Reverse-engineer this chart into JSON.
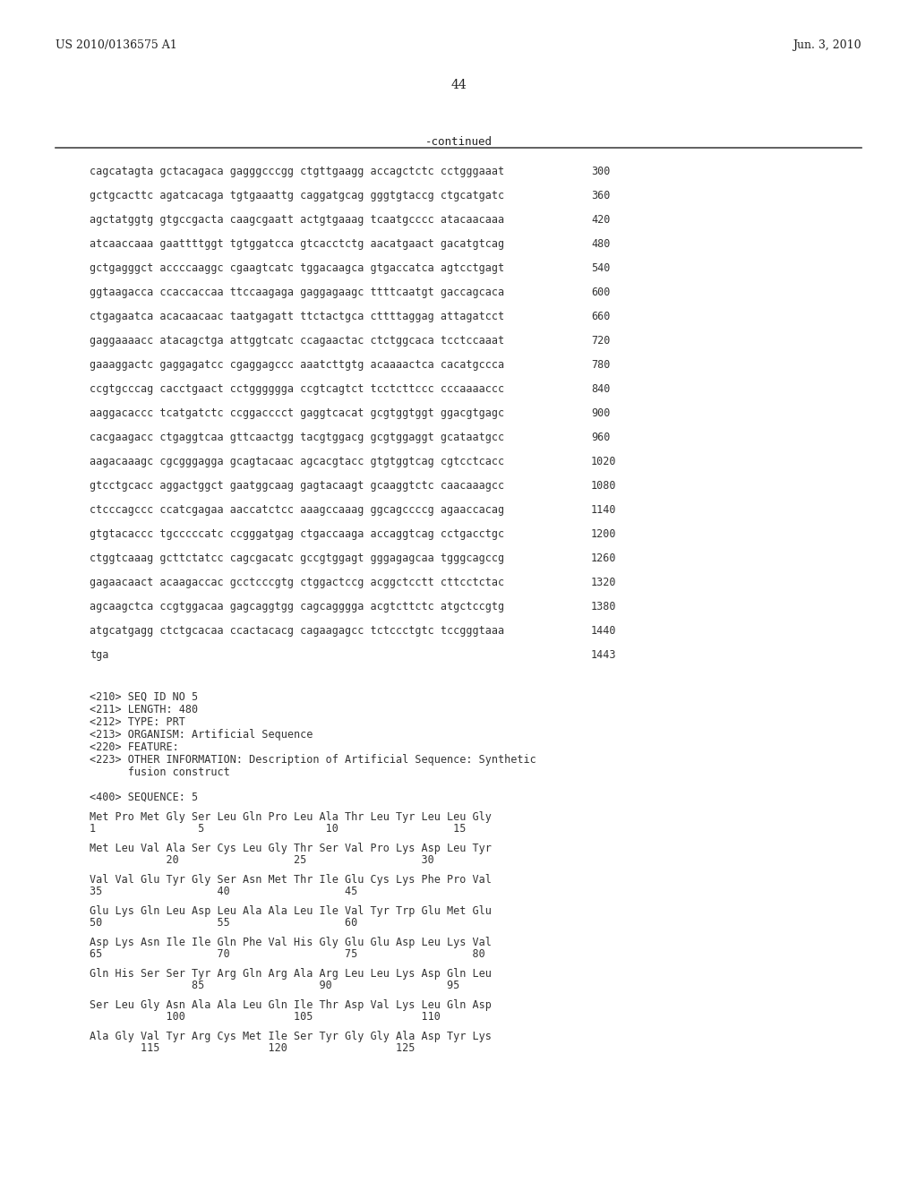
{
  "header_left": "US 2010/0136575 A1",
  "header_right": "Jun. 3, 2010",
  "page_number": "44",
  "continued_label": "-continued",
  "background_color": "#ffffff",
  "sequence_lines": [
    {
      "seq": "cagcatagta gctacagaca gagggcccgg ctgttgaagg accagctctc cctgggaaat",
      "num": "300"
    },
    {
      "seq": "gctgcacttc agatcacaga tgtgaaattg caggatgcag gggtgtaccg ctgcatgatc",
      "num": "360"
    },
    {
      "seq": "agctatggtg gtgccgacta caagcgaatt actgtgaaag tcaatgcccc atacaacaaa",
      "num": "420"
    },
    {
      "seq": "atcaaccaaa gaattttggt tgtggatcca gtcacctctg aacatgaact gacatgtcag",
      "num": "480"
    },
    {
      "seq": "gctgagggct accccaaggc cgaagtcatc tggacaagca gtgaccatca agtcctgagt",
      "num": "540"
    },
    {
      "seq": "ggtaagacca ccaccaccaa ttccaagaga gaggagaagc ttttcaatgt gaccagcaca",
      "num": "600"
    },
    {
      "seq": "ctgagaatca acacaacaac taatgagatt ttctactgca cttttaggag attagatcct",
      "num": "660"
    },
    {
      "seq": "gaggaaaacc atacagctga attggtcatc ccagaactac ctctggcaca tcctccaaat",
      "num": "720"
    },
    {
      "seq": "gaaaggactc gaggagatcc cgaggagccc aaatcttgtg acaaaactca cacatgccca",
      "num": "780"
    },
    {
      "seq": "ccgtgcccag cacctgaact cctgggggga ccgtcagtct tcctcttccc cccaaaaccc",
      "num": "840"
    },
    {
      "seq": "aaggacaccс tcatgatctc ccggacccct gaggtcacat gcgtggtggt ggacgtgagc",
      "num": "900"
    },
    {
      "seq": "cacgaagacc ctgaggtcaa gttcaactgg tacgtggacg gcgtggaggt gcataatgcc",
      "num": "960"
    },
    {
      "seq": "aagacaaagc cgcgggagga gcagtacaac agcacgtacc gtgtggtcag cgtcctcacc",
      "num": "1020"
    },
    {
      "seq": "gtcctgcacc aggactggct gaatggcaag gagtacaagt gcaaggtctc caacaaagcc",
      "num": "1080"
    },
    {
      "seq": "ctcccagccc ccatcgagaa aaccatctcc aaagccaaag ggcagccccg agaaccacag",
      "num": "1140"
    },
    {
      "seq": "gtgtacaccc tgcccccatc ccgggatgag ctgaccaaga accaggtcag cctgacctgc",
      "num": "1200"
    },
    {
      "seq": "ctggtcaaag gcttctatcc cagcgacatc gccgtggagt gggagagcaa tgggcagccg",
      "num": "1260"
    },
    {
      "seq": "gagaacaact acaagaccac gcctcccgtg ctggactccg acggctcctt cttcctctac",
      "num": "1320"
    },
    {
      "seq": "agcaagctca ccgtggacaa gagcaggtgg cagcagggga acgtcttctc atgctccgtg",
      "num": "1380"
    },
    {
      "seq": "atgcatgagg ctctgcacaa ccactacacg cagaagagcc tctccctgtc tccgggtaaa",
      "num": "1440"
    },
    {
      "seq": "tga",
      "num": "1443"
    }
  ],
  "metadata_lines": [
    "<210> SEQ ID NO 5",
    "<211> LENGTH: 480",
    "<212> TYPE: PRT",
    "<213> ORGANISM: Artificial Sequence",
    "<220> FEATURE:",
    "<223> OTHER INFORMATION: Description of Artificial Sequence: Synthetic",
    "      fusion construct"
  ],
  "sequence_label": "<400> SEQUENCE: 5",
  "protein_blocks": [
    {
      "seq": "Met Pro Met Gly Ser Leu Gln Pro Leu Ala Thr Leu Tyr Leu Leu Gly",
      "nums": "1                5                   10                  15"
    },
    {
      "seq": "Met Leu Val Ala Ser Cys Leu Gly Thr Ser Val Pro Lys Asp Leu Tyr",
      "nums": "            20                  25                  30"
    },
    {
      "seq": "Val Val Glu Tyr Gly Ser Asn Met Thr Ile Glu Cys Lys Phe Pro Val",
      "nums": "35                  40                  45"
    },
    {
      "seq": "Glu Lys Gln Leu Asp Leu Ala Ala Leu Ile Val Tyr Trp Glu Met Glu",
      "nums": "50                  55                  60"
    },
    {
      "seq": "Asp Lys Asn Ile Ile Gln Phe Val His Gly Glu Glu Asp Leu Lys Val",
      "nums": "65                  70                  75                  80"
    },
    {
      "seq": "Gln His Ser Ser Tyr Arg Gln Arg Ala Arg Leu Leu Lys Asp Gln Leu",
      "nums": "                85                  90                  95"
    },
    {
      "seq": "Ser Leu Gly Asn Ala Ala Leu Gln Ile Thr Asp Val Lys Leu Gln Asp",
      "nums": "            100                 105                 110"
    },
    {
      "seq": "Ala Gly Val Tyr Arg Cys Met Ile Ser Tyr Gly Gly Ala Asp Tyr Lys",
      "nums": "        115                 120                 125"
    }
  ]
}
